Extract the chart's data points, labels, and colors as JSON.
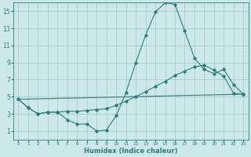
{
  "xlabel": "Humidex (Indice chaleur)",
  "background_color": "#cce8e8",
  "grid_color": "#aacccc",
  "line_color": "#2d7d7d",
  "xlim": [
    -0.5,
    23.5
  ],
  "ylim": [
    0,
    16
  ],
  "xticks": [
    0,
    1,
    2,
    3,
    4,
    5,
    6,
    7,
    8,
    9,
    10,
    11,
    12,
    13,
    14,
    15,
    16,
    17,
    18,
    19,
    20,
    21,
    22,
    23
  ],
  "yticks": [
    1,
    3,
    5,
    7,
    9,
    11,
    13,
    15
  ],
  "line1_x": [
    0,
    1,
    2,
    3,
    4,
    5,
    6,
    7,
    8,
    9,
    10,
    11,
    12,
    13,
    14,
    15,
    16,
    17,
    18,
    19,
    20,
    21,
    22,
    23
  ],
  "line1_y": [
    4.7,
    3.7,
    3.0,
    3.2,
    3.2,
    2.3,
    1.8,
    1.8,
    1.0,
    1.1,
    2.8,
    5.5,
    9.0,
    12.2,
    14.9,
    16.0,
    15.8,
    12.7,
    9.5,
    8.2,
    7.7,
    8.2,
    6.4,
    5.3
  ],
  "line2_x": [
    0,
    1,
    2,
    3,
    4,
    5,
    6,
    7,
    8,
    9,
    10,
    11,
    12,
    13,
    14,
    15,
    16,
    17,
    18,
    19,
    20,
    21,
    22,
    23
  ],
  "line2_y": [
    4.7,
    3.7,
    3.0,
    3.2,
    3.2,
    3.3,
    3.3,
    3.4,
    3.5,
    3.6,
    4.0,
    4.5,
    5.0,
    5.6,
    6.2,
    6.8,
    7.5,
    8.0,
    8.5,
    8.7,
    8.1,
    7.4,
    5.4,
    5.3
  ],
  "line3_x": [
    0,
    23
  ],
  "line3_y": [
    4.7,
    5.3
  ],
  "xtick_fontsize": 4.2,
  "ytick_fontsize": 5.5,
  "xlabel_fontsize": 6.0,
  "linewidth": 0.8,
  "markersize": 1.8
}
